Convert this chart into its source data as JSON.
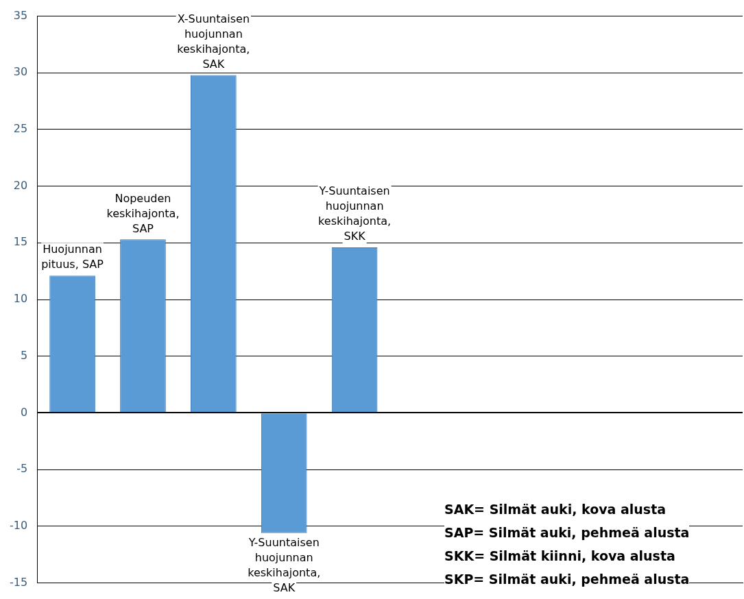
{
  "chart_data": {
    "type": "bar",
    "categories": [
      "Huojunnan pituus, SAP",
      "Nopeuden keskihajonta, SAP",
      "X-Suuntaisen huojunnan keskihajonta, SAK",
      "Y-Suuntaisen huojunnan keskihajonta, SAK",
      "Y-Suuntaisen huojunnan keskihajonta, SKK",
      null,
      null,
      null,
      null,
      null
    ],
    "values": [
      12.1,
      15.3,
      29.8,
      -10.6,
      14.6,
      null,
      null,
      null,
      null,
      null
    ],
    "color": "#5b9bd5",
    "ylim": [
      -15,
      35
    ],
    "yticks": [
      -15,
      -10,
      -5,
      0,
      5,
      10,
      15,
      20,
      25,
      30,
      35
    ],
    "grid": "y",
    "legend": false,
    "annotations": [
      "SAK= Silmät auki, kova alusta",
      "SAP= Silmät auki, pehmeä alusta",
      "SKK= Silmät kiinni, kova alusta",
      "SKP= Silmät auki, pehmeä alusta"
    ]
  }
}
